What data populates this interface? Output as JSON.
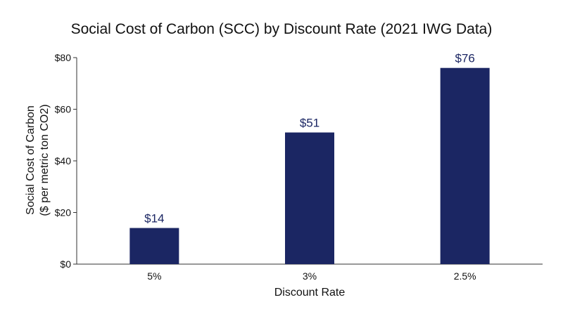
{
  "chart_data": {
    "type": "bar",
    "title": "Social Cost of Carbon (SCC) by Discount Rate (2021 IWG Data)",
    "xlabel": "Discount Rate",
    "ylabel": [
      "Social Cost of Carbon",
      "($ per metric ton CO2)"
    ],
    "categories": [
      "5%",
      "3%",
      "2.5%"
    ],
    "values": [
      14,
      51,
      76
    ],
    "data_labels": [
      "$14",
      "$51",
      "$76"
    ],
    "ylim": [
      0,
      80
    ],
    "yticks": [
      0,
      20,
      40,
      60,
      80
    ],
    "ytick_labels": [
      "$0",
      "$20",
      "$40",
      "$60",
      "$80"
    ],
    "grid": false,
    "legend": "none",
    "colors": {
      "bar": "#1b2663",
      "data_label": "#1b2663",
      "axis": "#333333",
      "text": "#111111"
    }
  }
}
